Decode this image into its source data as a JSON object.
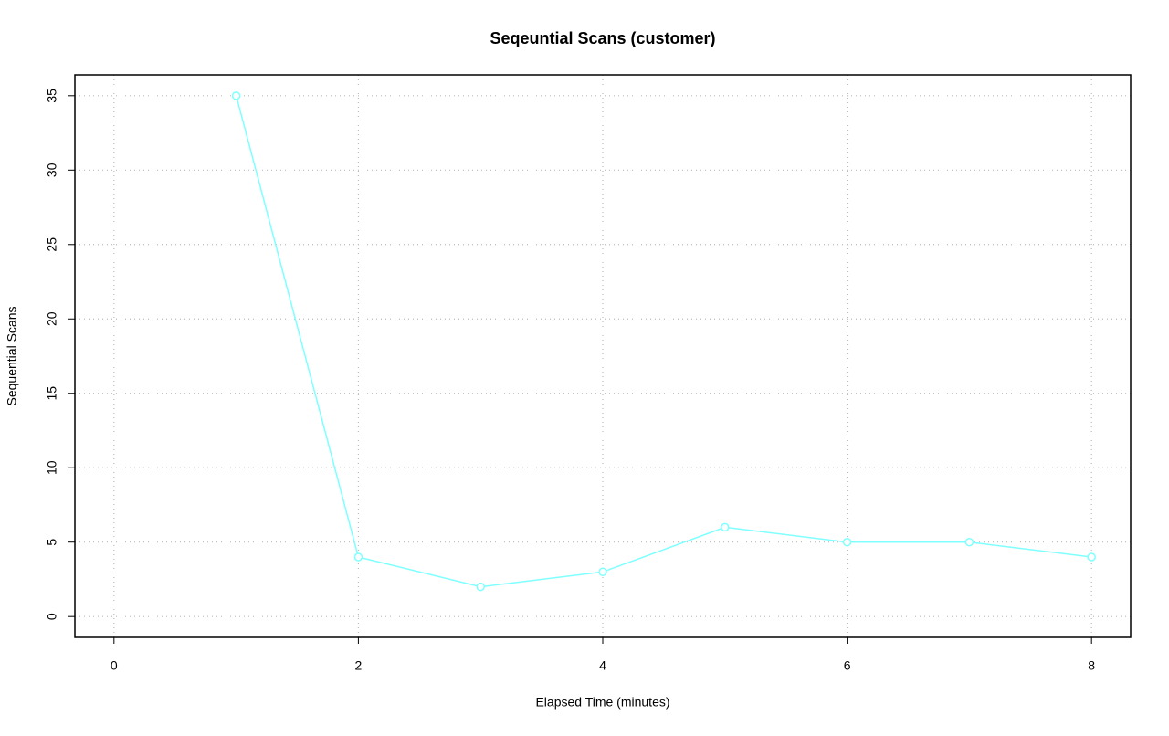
{
  "chart_data": {
    "type": "line",
    "title": "Seqeuntial Scans (customer)",
    "xlabel": "Elapsed Time (minutes)",
    "ylabel": "Sequential Scans",
    "x": [
      1,
      2,
      3,
      4,
      5,
      6,
      7,
      8
    ],
    "values": [
      35,
      4,
      2,
      3,
      6,
      5,
      5,
      4
    ],
    "color": "#80ffff",
    "xlim": [
      -0.32,
      8.32
    ],
    "xticks": [
      0,
      2,
      4,
      6,
      8
    ],
    "ylim": [
      -1.4,
      36.4
    ],
    "yticks": [
      0,
      5,
      10,
      15,
      20,
      25,
      30,
      35
    ],
    "grid": true
  }
}
